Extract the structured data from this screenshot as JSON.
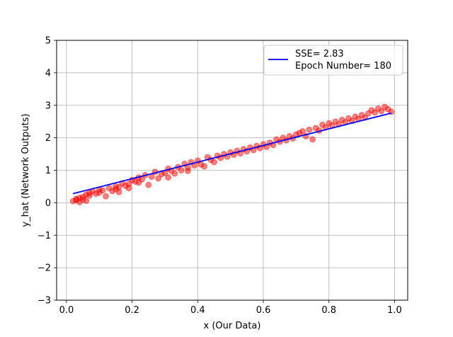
{
  "chart_data": {
    "type": "scatter",
    "title": "",
    "xlabel": "x (Our Data)",
    "ylabel": "y_hat (Network Outputs)",
    "xlim": [
      -0.03,
      1.04
    ],
    "ylim": [
      -3,
      5
    ],
    "xticks": [
      0.0,
      0.2,
      0.4,
      0.6,
      0.8,
      1.0
    ],
    "xtick_labels": [
      "0.0",
      "0.2",
      "0.4",
      "0.6",
      "0.8",
      "1.0"
    ],
    "yticks": [
      -3,
      -2,
      -1,
      0,
      1,
      2,
      3,
      4,
      5
    ],
    "ytick_labels": [
      "−3",
      "−2",
      "−1",
      "0",
      "1",
      "2",
      "3",
      "4",
      "5"
    ],
    "grid": true,
    "legend": {
      "placement": "top-right",
      "entries": [
        "SSE= 2.83",
        "Epoch Number= 180"
      ]
    },
    "fit_line": {
      "color": "#0000ff",
      "x": [
        0.02,
        0.99
      ],
      "y": [
        0.28,
        2.76
      ]
    },
    "scatter": {
      "color": "#ff0000",
      "x": [
        0.02,
        0.03,
        0.03,
        0.04,
        0.04,
        0.05,
        0.05,
        0.06,
        0.06,
        0.07,
        0.07,
        0.08,
        0.09,
        0.1,
        0.1,
        0.11,
        0.12,
        0.13,
        0.14,
        0.15,
        0.15,
        0.16,
        0.16,
        0.17,
        0.18,
        0.19,
        0.19,
        0.2,
        0.21,
        0.22,
        0.22,
        0.23,
        0.24,
        0.25,
        0.26,
        0.27,
        0.28,
        0.29,
        0.3,
        0.31,
        0.31,
        0.32,
        0.33,
        0.34,
        0.35,
        0.36,
        0.37,
        0.37,
        0.38,
        0.39,
        0.4,
        0.41,
        0.42,
        0.43,
        0.44,
        0.45,
        0.46,
        0.47,
        0.48,
        0.49,
        0.5,
        0.51,
        0.52,
        0.53,
        0.54,
        0.55,
        0.56,
        0.57,
        0.58,
        0.59,
        0.6,
        0.61,
        0.62,
        0.63,
        0.64,
        0.65,
        0.66,
        0.67,
        0.68,
        0.69,
        0.7,
        0.71,
        0.72,
        0.73,
        0.74,
        0.75,
        0.76,
        0.77,
        0.78,
        0.79,
        0.8,
        0.81,
        0.82,
        0.83,
        0.84,
        0.85,
        0.86,
        0.87,
        0.88,
        0.89,
        0.9,
        0.91,
        0.92,
        0.93,
        0.94,
        0.95,
        0.96,
        0.97,
        0.98,
        0.99
      ],
      "y": [
        0.05,
        0.12,
        0.08,
        0.15,
        0.02,
        0.1,
        0.18,
        0.06,
        0.25,
        0.3,
        0.22,
        0.35,
        0.28,
        0.4,
        0.31,
        0.38,
        0.2,
        0.45,
        0.36,
        0.5,
        0.42,
        0.33,
        0.48,
        0.6,
        0.52,
        0.58,
        0.45,
        0.7,
        0.65,
        0.78,
        0.62,
        0.72,
        0.85,
        0.55,
        0.8,
        0.95,
        0.75,
        0.88,
        0.92,
        0.78,
        1.05,
        0.98,
        0.9,
        1.1,
        1.0,
        1.2,
        1.08,
        0.98,
        1.25,
        1.15,
        1.3,
        1.18,
        1.12,
        1.4,
        1.32,
        1.25,
        1.45,
        1.38,
        1.5,
        1.42,
        1.55,
        1.48,
        1.6,
        1.52,
        1.65,
        1.58,
        1.7,
        1.62,
        1.75,
        1.68,
        1.8,
        1.72,
        1.85,
        1.78,
        1.95,
        1.88,
        2.0,
        1.92,
        2.05,
        1.98,
        2.1,
        2.15,
        2.2,
        2.05,
        2.25,
        1.95,
        2.3,
        2.22,
        2.4,
        2.32,
        2.45,
        2.38,
        2.5,
        2.42,
        2.55,
        2.48,
        2.6,
        2.52,
        2.65,
        2.58,
        2.7,
        2.62,
        2.75,
        2.85,
        2.78,
        2.9,
        2.82,
        2.95,
        2.88,
        2.8
      ]
    }
  }
}
